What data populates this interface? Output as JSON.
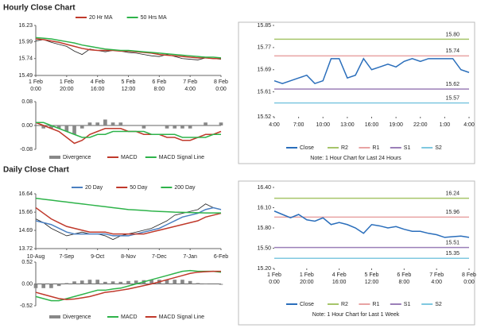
{
  "chart_data": [
    {
      "type": "line",
      "title": "Hourly Close Chart",
      "categories": [
        [
          "1 Feb",
          "0:00"
        ],
        null,
        null,
        null,
        [
          "1 Feb",
          "20:00"
        ],
        null,
        null,
        null,
        [
          "4 Feb",
          "16:00"
        ],
        null,
        null,
        null,
        [
          "5 Feb",
          "12:00"
        ],
        null,
        null,
        null,
        [
          "6 Feb",
          "8:00"
        ],
        null,
        null,
        null,
        [
          "7 Feb",
          "4:00"
        ],
        null,
        null,
        null,
        [
          "8 Feb",
          "0:00"
        ]
      ],
      "values": [
        16.0,
        16.02,
        15.98,
        15.95,
        15.92,
        15.85,
        15.8,
        15.88,
        15.86,
        15.84,
        15.86,
        15.85,
        15.83,
        15.82,
        15.8,
        15.78,
        15.77,
        15.8,
        15.77,
        15.74,
        15.73,
        15.72,
        15.75,
        15.74,
        15.73
      ],
      "color": "#222222",
      "series": [
        {
          "name": "20 Hr MA",
          "color": "#c0392b",
          "values": [
            16.03,
            16.02,
            16.0,
            15.98,
            15.95,
            15.92,
            15.89,
            15.87,
            15.86,
            15.86,
            15.86,
            15.85,
            15.85,
            15.84,
            15.83,
            15.82,
            15.8,
            15.79,
            15.78,
            15.77,
            15.76,
            15.75,
            15.75,
            15.74,
            15.74
          ]
        },
        {
          "name": "50 Hrs MA",
          "color": "#2eb34a",
          "values": [
            16.05,
            16.04,
            16.03,
            16.01,
            15.99,
            15.97,
            15.94,
            15.92,
            15.9,
            15.88,
            15.87,
            15.86,
            15.86,
            15.85,
            15.84,
            15.83,
            15.82,
            15.81,
            15.8,
            15.79,
            15.78,
            15.77,
            15.76,
            15.76,
            15.75
          ]
        }
      ],
      "ylim": [
        15.49,
        16.23
      ],
      "yticks": [
        16.23,
        15.99,
        15.74,
        15.49
      ]
    },
    {
      "type": "combo",
      "series": [
        {
          "name": "Divergence",
          "style": "bar",
          "color": "#888888",
          "values": [
            0,
            -0.01,
            -0.01,
            -0.01,
            -0.02,
            -0.03,
            -0.01,
            0.01,
            0.01,
            0.02,
            0.01,
            0.01,
            0,
            0,
            -0.01,
            0,
            0,
            -0.01,
            -0.01,
            -0.01,
            -0.01,
            0,
            0.01,
            0,
            0.01
          ]
        },
        {
          "name": "MACD",
          "style": "line",
          "color": "#c0392b",
          "values": [
            0.01,
            0.0,
            -0.01,
            -0.02,
            -0.04,
            -0.06,
            -0.05,
            -0.03,
            -0.02,
            -0.01,
            -0.01,
            -0.01,
            -0.02,
            -0.02,
            -0.03,
            -0.03,
            -0.03,
            -0.04,
            -0.04,
            -0.05,
            -0.05,
            -0.04,
            -0.03,
            -0.03,
            -0.02
          ]
        },
        {
          "name": "MACD Signal Line",
          "style": "line",
          "color": "#2eb34a",
          "values": [
            0.01,
            0.01,
            0.0,
            -0.01,
            -0.02,
            -0.03,
            -0.04,
            -0.04,
            -0.03,
            -0.03,
            -0.02,
            -0.02,
            -0.02,
            -0.02,
            -0.02,
            -0.03,
            -0.03,
            -0.03,
            -0.03,
            -0.04,
            -0.04,
            -0.04,
            -0.04,
            -0.03,
            -0.03
          ]
        }
      ],
      "ylim": [
        -0.08,
        0.08
      ],
      "yticks": [
        0.08,
        {
          "value": 0,
          "label": "0.00"
        },
        -0.08
      ]
    },
    {
      "type": "line",
      "categories": [
        "4:00",
        null,
        null,
        "7:00",
        null,
        null,
        "10:00",
        null,
        null,
        "13:00",
        null,
        null,
        "16:00",
        null,
        null,
        "19:00",
        null,
        null,
        "22:00",
        null,
        null,
        "1:00",
        null,
        null,
        "4:00"
      ],
      "series": [
        {
          "name": "Close",
          "color": "#2a6ebb",
          "values": [
            15.65,
            15.64,
            15.65,
            15.66,
            15.67,
            15.64,
            15.65,
            15.73,
            15.73,
            15.66,
            15.67,
            15.73,
            15.69,
            15.7,
            15.71,
            15.7,
            15.72,
            15.73,
            15.72,
            15.73,
            15.73,
            15.73,
            15.73,
            15.69,
            15.68
          ]
        }
      ],
      "levels": [
        {
          "name": "R2",
          "color": "#a6c56a",
          "value": 15.8,
          "label": "15.80"
        },
        {
          "name": "R1",
          "color": "#e8a3a3",
          "value": 15.74,
          "label": "15.74"
        },
        {
          "name": "S1",
          "color": "#9b7fb8",
          "value": 15.62,
          "label": "15.62"
        },
        {
          "name": "S2",
          "color": "#7fc8e0",
          "value": 15.57,
          "label": "15.57"
        }
      ],
      "ylim": [
        15.52,
        15.85
      ],
      "yticks": [
        15.85,
        15.77,
        15.69,
        15.61,
        15.52
      ],
      "note": "Note: 1 Hour Chart for Last 24 Hours"
    },
    {
      "type": "line",
      "title": "Daily Close Chart",
      "categories": [
        "10-Aug",
        null,
        null,
        null,
        "7-Sep",
        null,
        null,
        null,
        "9-Oct",
        null,
        null,
        null,
        "8-Nov",
        null,
        null,
        null,
        "7-Dec",
        null,
        null,
        null,
        "7-Jan",
        null,
        null,
        null,
        "6-Feb"
      ],
      "values": [
        15.3,
        15.1,
        14.8,
        14.6,
        14.4,
        14.5,
        14.6,
        14.5,
        14.5,
        14.4,
        14.2,
        14.4,
        14.5,
        14.6,
        14.7,
        14.8,
        15.0,
        15.2,
        15.5,
        15.6,
        15.7,
        15.8,
        16.1,
        15.9,
        15.8
      ],
      "color": "#222222",
      "series": [
        {
          "name": "20 Day",
          "color": "#4a7fc1",
          "values": [
            15.2,
            15.1,
            15.0,
            14.8,
            14.6,
            14.5,
            14.5,
            14.5,
            14.5,
            14.5,
            14.4,
            14.4,
            14.4,
            14.5,
            14.6,
            14.7,
            14.8,
            15.0,
            15.2,
            15.4,
            15.5,
            15.6,
            15.8,
            15.9,
            15.8
          ]
        },
        {
          "name": "50 Day",
          "color": "#c0392b",
          "values": [
            15.9,
            15.6,
            15.3,
            15.1,
            14.9,
            14.8,
            14.7,
            14.6,
            14.6,
            14.6,
            14.5,
            14.5,
            14.5,
            14.5,
            14.5,
            14.6,
            14.7,
            14.8,
            14.9,
            15.0,
            15.1,
            15.2,
            15.4,
            15.5,
            15.6
          ]
        },
        {
          "name": "200 Day",
          "color": "#2eb34a",
          "values": [
            16.4,
            16.35,
            16.3,
            16.25,
            16.2,
            16.15,
            16.1,
            16.05,
            16.0,
            15.95,
            15.9,
            15.85,
            15.8,
            15.78,
            15.75,
            15.72,
            15.7,
            15.68,
            15.66,
            15.65,
            15.64,
            15.63,
            15.62,
            15.62,
            15.62
          ]
        }
      ],
      "ylim": [
        13.72,
        16.64
      ],
      "yticks": [
        16.64,
        15.66,
        14.69,
        13.72
      ]
    },
    {
      "type": "combo",
      "series": [
        {
          "name": "Divergence",
          "style": "bar",
          "color": "#888888",
          "values": [
            -0.1,
            -0.1,
            -0.1,
            -0.05,
            0.02,
            0.06,
            0.08,
            0.1,
            0.1,
            0.05,
            0.06,
            0.05,
            0.07,
            0.08,
            0.09,
            0.1,
            0.1,
            0.1,
            0.1,
            0.1,
            0.07,
            0.02,
            0.01,
            0.0,
            -0.02
          ]
        },
        {
          "name": "MACD",
          "style": "line",
          "color": "#2eb34a",
          "values": [
            -0.3,
            -0.35,
            -0.4,
            -0.4,
            -0.35,
            -0.3,
            -0.25,
            -0.2,
            -0.15,
            -0.15,
            -0.12,
            -0.1,
            -0.05,
            0.0,
            0.05,
            0.1,
            0.15,
            0.2,
            0.25,
            0.3,
            0.32,
            0.3,
            0.3,
            0.3,
            0.28
          ]
        },
        {
          "name": "MACD Signal Line",
          "style": "line",
          "color": "#c0392b",
          "values": [
            -0.2,
            -0.25,
            -0.3,
            -0.35,
            -0.37,
            -0.36,
            -0.33,
            -0.3,
            -0.25,
            -0.2,
            -0.18,
            -0.15,
            -0.12,
            -0.08,
            -0.04,
            0.0,
            0.05,
            0.1,
            0.15,
            0.2,
            0.25,
            0.28,
            0.29,
            0.3,
            0.3
          ]
        }
      ],
      "ylim": [
        -0.52,
        0.52
      ],
      "yticks": [
        0.52,
        {
          "value": 0,
          "label": "0.00"
        },
        -0.52
      ]
    },
    {
      "type": "line",
      "categories": [
        [
          "1 Feb",
          "0:00"
        ],
        null,
        null,
        null,
        [
          "1 Feb",
          "20:00"
        ],
        null,
        null,
        null,
        [
          "4 Feb",
          "16:00"
        ],
        null,
        null,
        null,
        [
          "5 Feb",
          "12:00"
        ],
        null,
        null,
        null,
        [
          "6 Feb",
          "8:00"
        ],
        null,
        null,
        null,
        [
          "7 Feb",
          "4:00"
        ],
        null,
        null,
        null,
        [
          "8 Feb",
          "0:00"
        ]
      ],
      "series": [
        {
          "name": "Close",
          "color": "#2a6ebb",
          "values": [
            16.05,
            16.0,
            15.95,
            16.0,
            15.92,
            15.9,
            15.95,
            15.85,
            15.88,
            15.85,
            15.8,
            15.72,
            15.85,
            15.83,
            15.8,
            15.82,
            15.78,
            15.75,
            15.75,
            15.72,
            15.7,
            15.66,
            15.67,
            15.68,
            15.66
          ]
        }
      ],
      "levels": [
        {
          "name": "R2",
          "color": "#a6c56a",
          "value": 16.24,
          "label": "16.24"
        },
        {
          "name": "R1",
          "color": "#e8a3a3",
          "value": 15.96,
          "label": "15.96"
        },
        {
          "name": "S1",
          "color": "#9b7fb8",
          "value": 15.51,
          "label": "15.51"
        },
        {
          "name": "S2",
          "color": "#7fc8e0",
          "value": 15.35,
          "label": "15.35"
        }
      ],
      "ylim": [
        15.2,
        16.4
      ],
      "yticks": [
        {
          "value": 16.4,
          "label": "16.40"
        },
        {
          "value": 16.1,
          "label": "16.10"
        },
        {
          "value": 15.8,
          "label": "15.80"
        },
        {
          "value": 15.5,
          "label": "15.50"
        },
        {
          "value": 15.2,
          "label": "15.20"
        }
      ],
      "note": "Note: 1 Hour Chart for Last 1 Week"
    }
  ]
}
